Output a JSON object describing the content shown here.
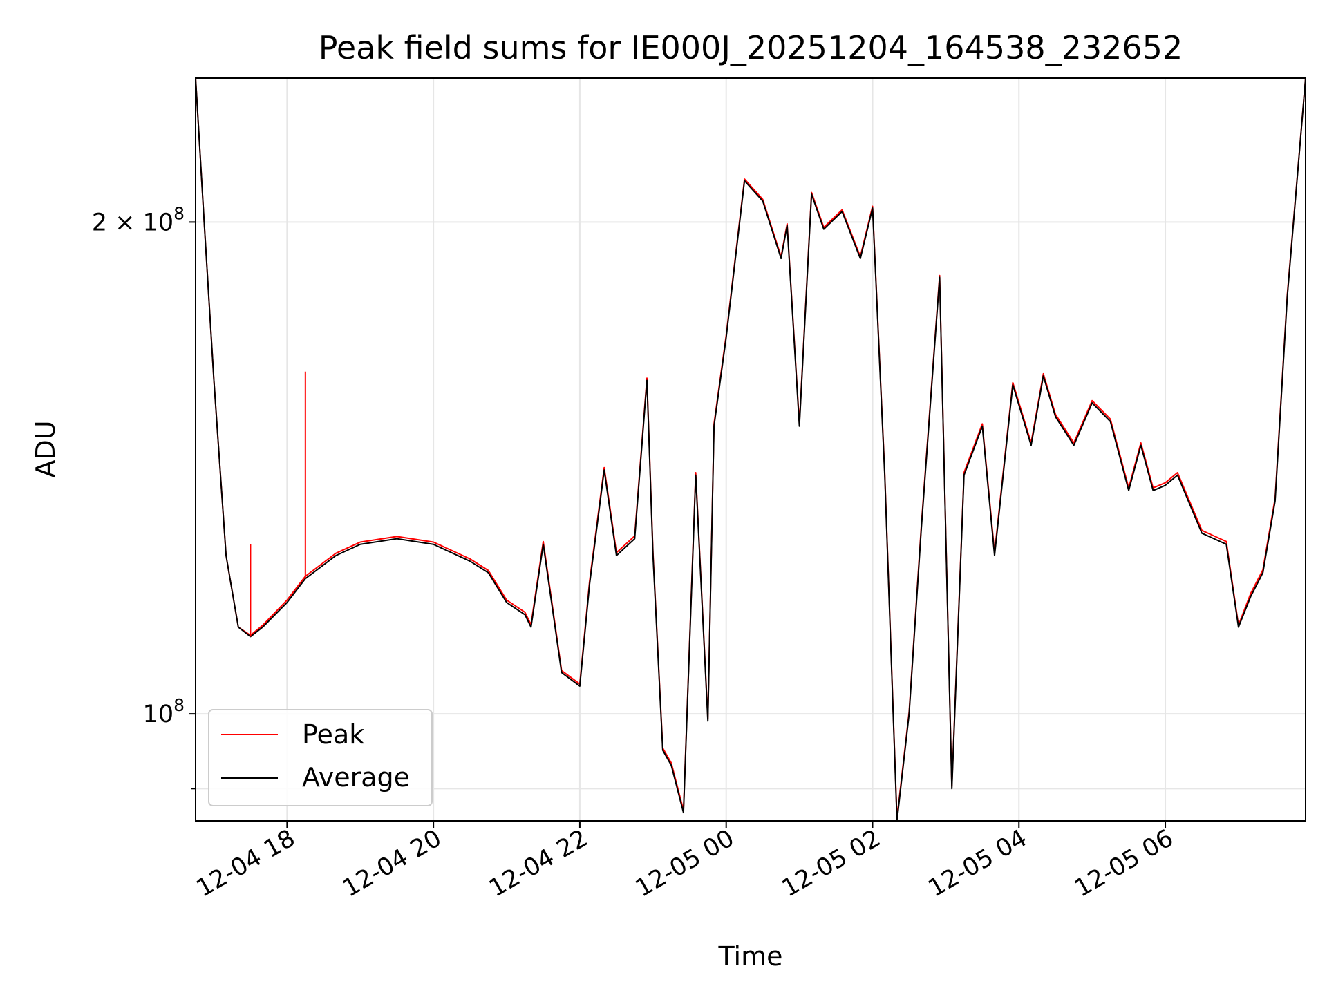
{
  "chart_data": {
    "type": "line",
    "title": "Peak field sums for IE000J_20251204_164538_232652",
    "xlabel": "Time",
    "ylabel": "ADU",
    "y_scale": "log",
    "grid": true,
    "legend_position": "lower-left",
    "x_range_hours": [
      "2025-12-04 16:45",
      "2025-12-05 07:55"
    ],
    "ylim": [
      86000000,
      245000000
    ],
    "x_ticks": [
      "12-04 18",
      "12-04 20",
      "12-04 22",
      "12-05 00",
      "12-05 02",
      "12-05 04",
      "12-05 06"
    ],
    "y_ticks": [
      {
        "value": 100000000,
        "base": "10",
        "exp": "8",
        "coef": ""
      },
      {
        "value": 200000000,
        "base": "10",
        "exp": "8",
        "coef": "2 × "
      }
    ],
    "colors": {
      "Peak": "#ff0000",
      "Average": "#000000"
    },
    "spikes": [
      {
        "time": "2025-12-04 17:30",
        "value": 127000000
      },
      {
        "time": "2025-12-04 18:15",
        "value": 162000000
      }
    ],
    "x": [
      "2025-12-04 16:45",
      "2025-12-04 16:52",
      "2025-12-04 17:00",
      "2025-12-04 17:10",
      "2025-12-04 17:20",
      "2025-12-04 17:30",
      "2025-12-04 17:40",
      "2025-12-04 18:00",
      "2025-12-04 18:15",
      "2025-12-04 18:40",
      "2025-12-04 19:00",
      "2025-12-04 19:30",
      "2025-12-04 20:00",
      "2025-12-04 20:30",
      "2025-12-04 20:45",
      "2025-12-04 21:00",
      "2025-12-04 21:15",
      "2025-12-04 21:20",
      "2025-12-04 21:30",
      "2025-12-04 21:45",
      "2025-12-04 22:00",
      "2025-12-04 22:08",
      "2025-12-04 22:20",
      "2025-12-04 22:30",
      "2025-12-04 22:45",
      "2025-12-04 22:55",
      "2025-12-04 23:00",
      "2025-12-04 23:08",
      "2025-12-04 23:15",
      "2025-12-04 23:25",
      "2025-12-04 23:35",
      "2025-12-04 23:45",
      "2025-12-04 23:50",
      "2025-12-05 00:00",
      "2025-12-05 00:15",
      "2025-12-05 00:30",
      "2025-12-05 00:45",
      "2025-12-05 00:50",
      "2025-12-05 01:00",
      "2025-12-05 01:10",
      "2025-12-05 01:20",
      "2025-12-05 01:35",
      "2025-12-05 01:50",
      "2025-12-05 02:00",
      "2025-12-05 02:10",
      "2025-12-05 02:20",
      "2025-12-05 02:30",
      "2025-12-05 02:40",
      "2025-12-05 02:55",
      "2025-12-05 03:05",
      "2025-12-05 03:15",
      "2025-12-05 03:30",
      "2025-12-05 03:40",
      "2025-12-05 03:55",
      "2025-12-05 04:10",
      "2025-12-05 04:20",
      "2025-12-05 04:30",
      "2025-12-05 04:45",
      "2025-12-05 05:00",
      "2025-12-05 05:15",
      "2025-12-05 05:30",
      "2025-12-05 05:40",
      "2025-12-05 05:50",
      "2025-12-05 06:00",
      "2025-12-05 06:10",
      "2025-12-05 06:30",
      "2025-12-05 06:40",
      "2025-12-05 06:50",
      "2025-12-05 07:00",
      "2025-12-05 07:10",
      "2025-12-05 07:20",
      "2025-12-05 07:30",
      "2025-12-05 07:40",
      "2025-12-05 07:55"
    ],
    "series": [
      {
        "name": "Average",
        "values": [
          245000000,
          200000000,
          160000000,
          125000000,
          113000000,
          111500000,
          113000000,
          117000000,
          121000000,
          125000000,
          127000000,
          128000000,
          127000000,
          124000000,
          122000000,
          117000000,
          115000000,
          113000000,
          127000000,
          106000000,
          104000000,
          120000000,
          141000000,
          125000000,
          128000000,
          160000000,
          125000000,
          95000000,
          93000000,
          87000000,
          140000000,
          99000000,
          150000000,
          170000000,
          212000000,
          206000000,
          190000000,
          199000000,
          150000000,
          208000000,
          198000000,
          203000000,
          190000000,
          204000000,
          140000000,
          86000000,
          100000000,
          130000000,
          185000000,
          90000000,
          140000000,
          150000000,
          125000000,
          159000000,
          146000000,
          161000000,
          152000000,
          146000000,
          155000000,
          151000000,
          137000000,
          146000000,
          137000000,
          138000000,
          140000000,
          129000000,
          128000000,
          127000000,
          113000000,
          118000000,
          122000000,
          135000000,
          180000000,
          245000000
        ]
      },
      {
        "name": "Peak",
        "values": [
          245000000,
          200000000,
          160000000,
          125000000,
          113000000,
          111700000,
          113300000,
          117400000,
          121400000,
          125400000,
          127400000,
          128400000,
          127400000,
          124400000,
          122400000,
          117400000,
          115400000,
          113400000,
          127500000,
          106300000,
          104300000,
          120500000,
          141500000,
          125500000,
          128500000,
          160500000,
          125500000,
          95300000,
          93300000,
          87300000,
          140500000,
          99300000,
          150500000,
          170500000,
          212500000,
          206500000,
          190500000,
          199500000,
          150500000,
          208500000,
          198500000,
          203500000,
          190500000,
          204500000,
          140500000,
          86300000,
          100300000,
          130500000,
          185500000,
          90300000,
          140500000,
          150500000,
          125500000,
          159500000,
          146500000,
          161500000,
          152500000,
          146500000,
          155500000,
          151500000,
          137500000,
          146500000,
          137500000,
          138500000,
          140500000,
          129500000,
          128500000,
          127500000,
          113300000,
          118500000,
          122500000,
          135500000,
          180500000,
          245000000
        ]
      }
    ]
  }
}
